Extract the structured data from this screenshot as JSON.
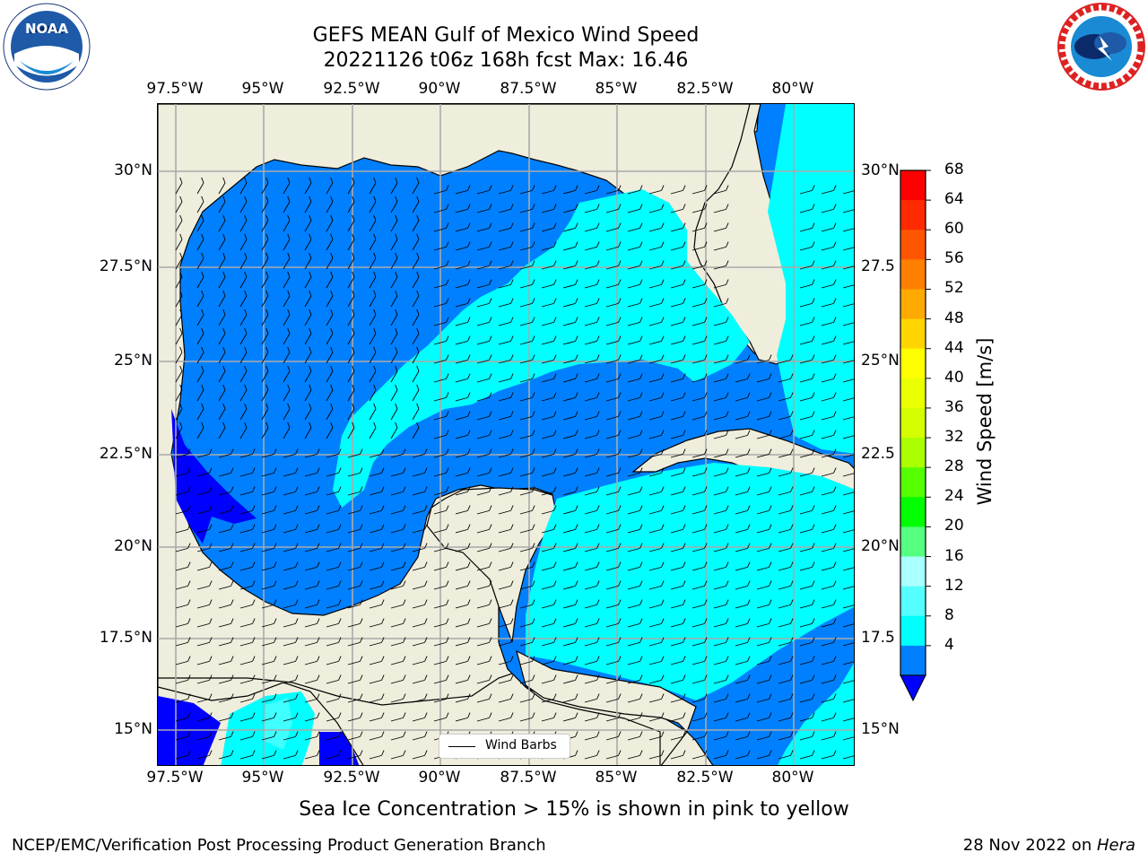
{
  "title": {
    "line1": "GEFS MEAN Gulf of Mexico Wind Speed",
    "line2": "20221126 t06z 168h fcst   Max: 16.46"
  },
  "logos": {
    "left": {
      "name": "NOAA",
      "text": "NOAA"
    },
    "right": {
      "name": "National Weather Service"
    }
  },
  "map": {
    "lon_ticks": [
      "97.5°W",
      "95°W",
      "92.5°W",
      "90°W",
      "87.5°W",
      "85°W",
      "82.5°W",
      "80°W"
    ],
    "lat_ticks_left": [
      "30°N",
      "27.5°N",
      "25°N",
      "22.5°N",
      "20°N",
      "17.5°N",
      "15°N"
    ],
    "lat_ticks_right": [
      "30°N",
      "27.5",
      "25°N",
      "22.5",
      "20°N",
      "17.5",
      "15°N"
    ],
    "legend_label": "Wind Barbs",
    "colors": {
      "land": "#efeddc",
      "ocean_4_8": "#0080ff",
      "ocean_8_12": "#00ffff",
      "ocean_12_16": "#40ffff",
      "below_4": "#0000ff",
      "grid": "#aaaaaa"
    }
  },
  "colorbar": {
    "label": "Wind Speed [m/s]",
    "ticks": [
      "68",
      "64",
      "60",
      "56",
      "52",
      "48",
      "44",
      "40",
      "36",
      "32",
      "28",
      "24",
      "20",
      "16",
      "12",
      "8",
      "4"
    ],
    "colors": [
      "#ff0000",
      "#ff2a00",
      "#ff5500",
      "#ff8000",
      "#ffaa00",
      "#ffd500",
      "#ffff00",
      "#eaff00",
      "#d5ff00",
      "#aaff00",
      "#55ff00",
      "#00ff00",
      "#55ff80",
      "#aaffff",
      "#55ffff",
      "#00ffff",
      "#0080ff"
    ],
    "extend_color": "#0000ff"
  },
  "caption": "Sea Ice Concentration > 15% is shown in pink to yellow",
  "footer": {
    "left": "NCEP/EMC/Verification Post Processing Product Generation Branch",
    "right_prefix": "28 Nov 2022 on ",
    "right_machine": "Hera"
  }
}
